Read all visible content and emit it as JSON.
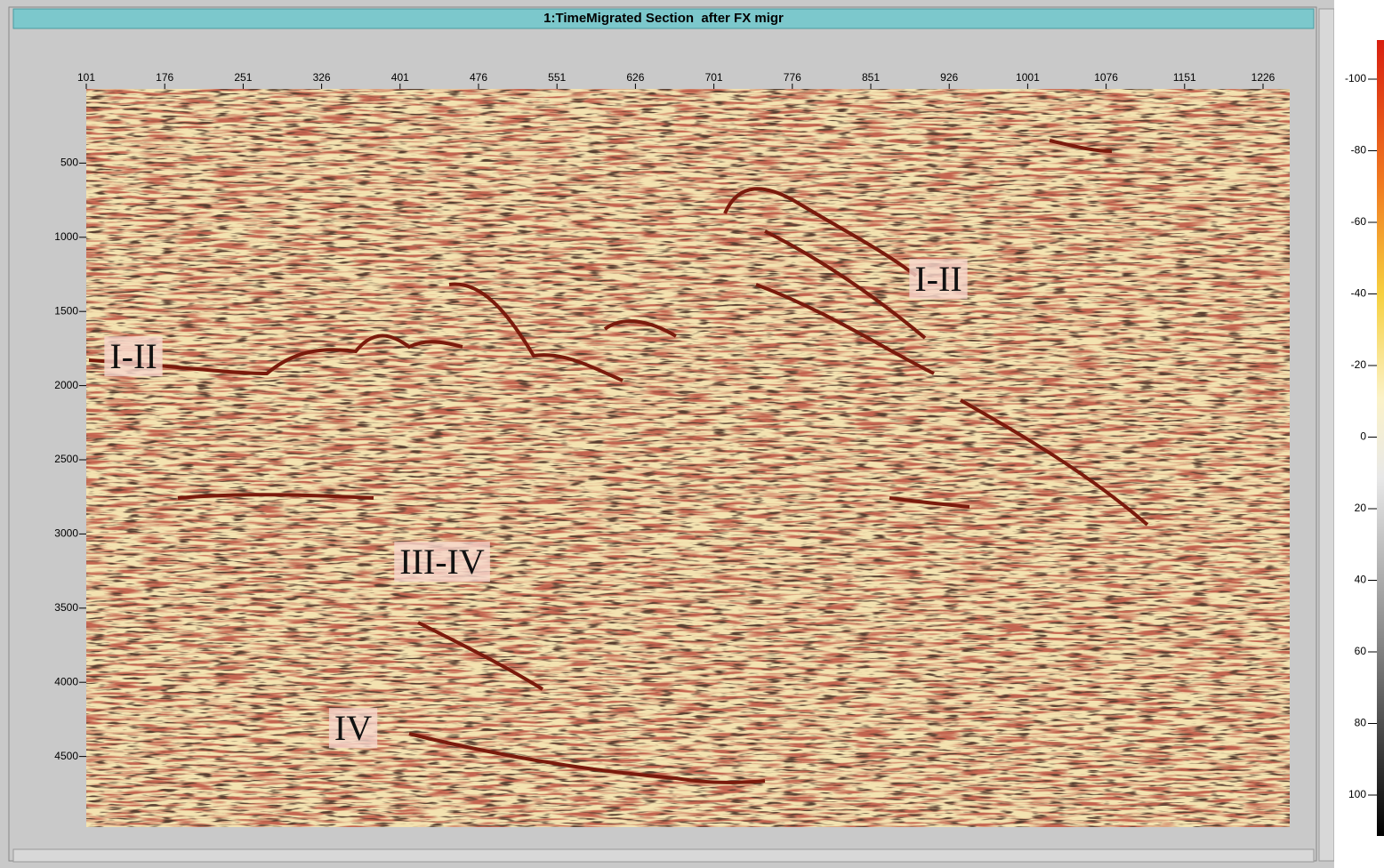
{
  "window": {
    "title": "1:TimeMigrated Section  after FX migr"
  },
  "section": {
    "x_ticks": [
      101,
      176,
      251,
      326,
      401,
      476,
      551,
      626,
      701,
      776,
      851,
      926,
      1001,
      1076,
      1151,
      1226
    ],
    "y_ticks": [
      500,
      1000,
      1500,
      2000,
      2500,
      3000,
      3500,
      4000,
      4500
    ],
    "annotations": [
      "I-II",
      "I-II",
      "III-IV",
      "IV"
    ]
  },
  "colorbar": {
    "ticks": [
      -100,
      -80,
      -60,
      -40,
      -20,
      0,
      20,
      40,
      60,
      80,
      100
    ]
  }
}
